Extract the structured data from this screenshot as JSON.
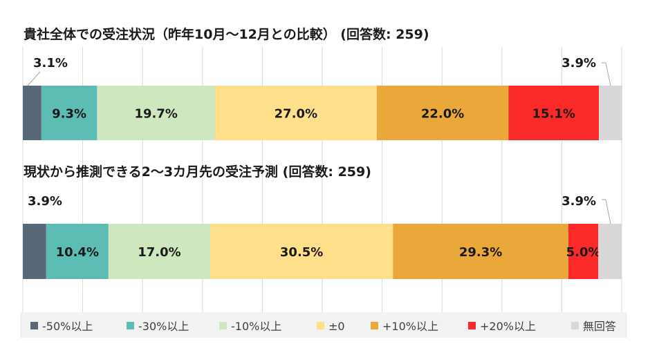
{
  "legend": [
    {
      "label": "-50%以上",
      "color": "#586878"
    },
    {
      "label": "-30%以上",
      "color": "#5dbdb5"
    },
    {
      "label": "-10%以上",
      "color": "#cfe7bf"
    },
    {
      "label": "±0",
      "color": "#ffe08a"
    },
    {
      "label": "+10%以上",
      "color": "#eba83a"
    },
    {
      "label": "+20%以上",
      "color": "#fb2a2a"
    },
    {
      "label": "無回答",
      "color": "#d8d6d8"
    }
  ],
  "chart_data": [
    {
      "type": "bar",
      "orientation": "horizontal-stacked-100",
      "title": "貴社全体での受注状況（昨年10月～12月との比較） (回答数: 259)",
      "xlim": [
        0,
        100
      ],
      "grid": true,
      "legend_position": "bottom",
      "series": [
        {
          "name": "-50%以上",
          "value": 3.1,
          "label": "3.1%"
        },
        {
          "name": "-30%以上",
          "value": 9.3,
          "label": "9.3%"
        },
        {
          "name": "-10%以上",
          "value": 19.7,
          "label": "19.7%"
        },
        {
          "name": "±0",
          "value": 27.0,
          "label": "27.0%"
        },
        {
          "name": "+10%以上",
          "value": 22.0,
          "label": "22.0%"
        },
        {
          "name": "+20%以上",
          "value": 15.1,
          "label": "15.1%"
        },
        {
          "name": "無回答",
          "value": 3.9,
          "label": "3.9%"
        }
      ]
    },
    {
      "type": "bar",
      "orientation": "horizontal-stacked-100",
      "title": "現状から推測できる2～3カ月先の受注予測 (回答数: 259)",
      "xlim": [
        0,
        100
      ],
      "grid": true,
      "legend_position": "bottom",
      "series": [
        {
          "name": "-50%以上",
          "value": 3.9,
          "label": "3.9%"
        },
        {
          "name": "-30%以上",
          "value": 10.4,
          "label": "10.4%"
        },
        {
          "name": "-10%以上",
          "value": 17.0,
          "label": "17.0%"
        },
        {
          "name": "±0",
          "value": 30.5,
          "label": "30.5%"
        },
        {
          "name": "+10%以上",
          "value": 29.3,
          "label": "29.3%"
        },
        {
          "name": "+20%以上",
          "value": 5.0,
          "label": "5.0%"
        },
        {
          "name": "無回答",
          "value": 3.9,
          "label": "3.9%"
        }
      ]
    }
  ]
}
